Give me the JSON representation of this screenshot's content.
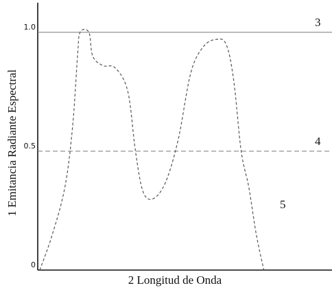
{
  "chart_data": {
    "type": "line",
    "xlabel": "2  Longitud de Onda",
    "ylabel": "1  Emitancia Radiante Espectral",
    "ylim": [
      0,
      1.15
    ],
    "xlim": [
      0,
      1
    ],
    "y_ticks": [
      {
        "value": 0,
        "label": "0"
      },
      {
        "value": 0.5,
        "label": "0.5"
      },
      {
        "value": 1.0,
        "label": "1.0"
      }
    ],
    "grid": false,
    "reference_lines": [
      {
        "y": 1.0,
        "style": "solid",
        "annotation": "3"
      },
      {
        "y": 0.5,
        "style": "dashed",
        "annotation": "4"
      }
    ],
    "series": [
      {
        "style": "dashed",
        "annotation": "5",
        "points": [
          {
            "x": 0.0,
            "y": 0.0
          },
          {
            "x": 0.05,
            "y": 0.15
          },
          {
            "x": 0.1,
            "y": 0.35
          },
          {
            "x": 0.13,
            "y": 0.6
          },
          {
            "x": 0.15,
            "y": 0.9
          },
          {
            "x": 0.16,
            "y": 1.0
          },
          {
            "x": 0.195,
            "y": 1.0
          },
          {
            "x": 0.21,
            "y": 0.9
          },
          {
            "x": 0.25,
            "y": 0.86
          },
          {
            "x": 0.3,
            "y": 0.85
          },
          {
            "x": 0.35,
            "y": 0.75
          },
          {
            "x": 0.38,
            "y": 0.5
          },
          {
            "x": 0.41,
            "y": 0.33
          },
          {
            "x": 0.45,
            "y": 0.3
          },
          {
            "x": 0.5,
            "y": 0.37
          },
          {
            "x": 0.55,
            "y": 0.55
          },
          {
            "x": 0.6,
            "y": 0.83
          },
          {
            "x": 0.65,
            "y": 0.94
          },
          {
            "x": 0.7,
            "y": 0.97
          },
          {
            "x": 0.74,
            "y": 0.95
          },
          {
            "x": 0.77,
            "y": 0.8
          },
          {
            "x": 0.8,
            "y": 0.5
          },
          {
            "x": 0.83,
            "y": 0.35
          },
          {
            "x": 0.86,
            "y": 0.15
          },
          {
            "x": 0.89,
            "y": 0.0
          }
        ]
      }
    ]
  }
}
